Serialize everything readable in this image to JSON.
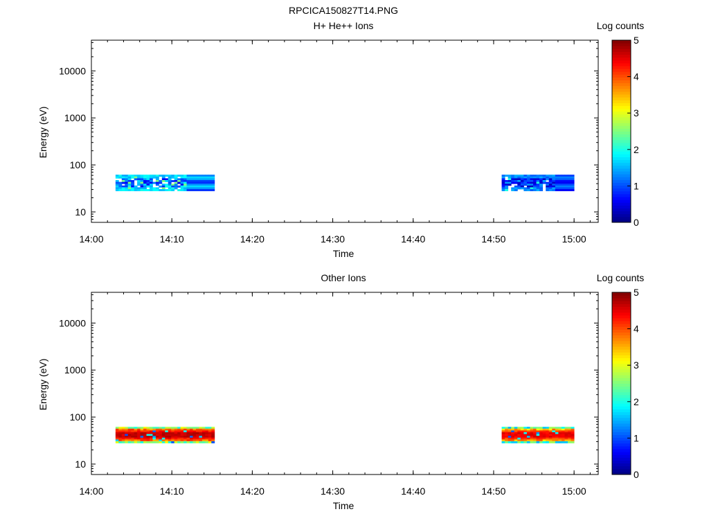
{
  "figure": {
    "title": "RPCICA150827T14.PNG"
  },
  "chart_data": [
    {
      "type": "heatmap",
      "title": "H+ He++ Ions",
      "xlabel": "Time",
      "ylabel": "Energy (eV)",
      "x_ticks": [
        "14:00",
        "14:10",
        "14:20",
        "14:30",
        "14:40",
        "14:50",
        "15:00"
      ],
      "xlim": [
        "14:00",
        "15:03"
      ],
      "y_scale": "log",
      "y_ticks": [
        10,
        100,
        1000,
        10000
      ],
      "ylim": [
        6,
        45000
      ],
      "grid": false,
      "colorbar": {
        "label": "Log counts",
        "range": [
          0,
          5
        ],
        "ticks": [
          0,
          1,
          2,
          3,
          4,
          5
        ],
        "colormap": "jet"
      },
      "segments": [
        {
          "start": "14:03",
          "end": "14:15.3",
          "energy_range": [
            28,
            62
          ],
          "typical_log_counts": [
            0.5,
            2
          ],
          "peak_log_counts": 2.5
        },
        {
          "start": "14:51",
          "end": "15:00",
          "energy_range": [
            28,
            62
          ],
          "typical_log_counts": [
            0.3,
            1.5
          ],
          "peak_log_counts": 2
        }
      ]
    },
    {
      "type": "heatmap",
      "title": "Other Ions",
      "xlabel": "Time",
      "ylabel": "Energy (eV)",
      "x_ticks": [
        "14:00",
        "14:10",
        "14:20",
        "14:30",
        "14:40",
        "14:50",
        "15:00"
      ],
      "xlim": [
        "14:00",
        "15:03"
      ],
      "y_scale": "log",
      "y_ticks": [
        10,
        100,
        1000,
        10000
      ],
      "ylim": [
        6,
        45000
      ],
      "grid": false,
      "colorbar": {
        "label": "Log counts",
        "range": [
          0,
          5
        ],
        "ticks": [
          0,
          1,
          2,
          3,
          4,
          5
        ],
        "colormap": "jet"
      },
      "segments": [
        {
          "start": "14:03",
          "end": "14:15.3",
          "energy_range": [
            28,
            62
          ],
          "typical_log_counts": [
            3,
            4.5
          ],
          "peak_log_counts": 4.8
        },
        {
          "start": "14:51",
          "end": "15:00",
          "energy_range": [
            28,
            62
          ],
          "typical_log_counts": [
            2.5,
            4.3
          ],
          "peak_log_counts": 4.6
        }
      ]
    }
  ]
}
